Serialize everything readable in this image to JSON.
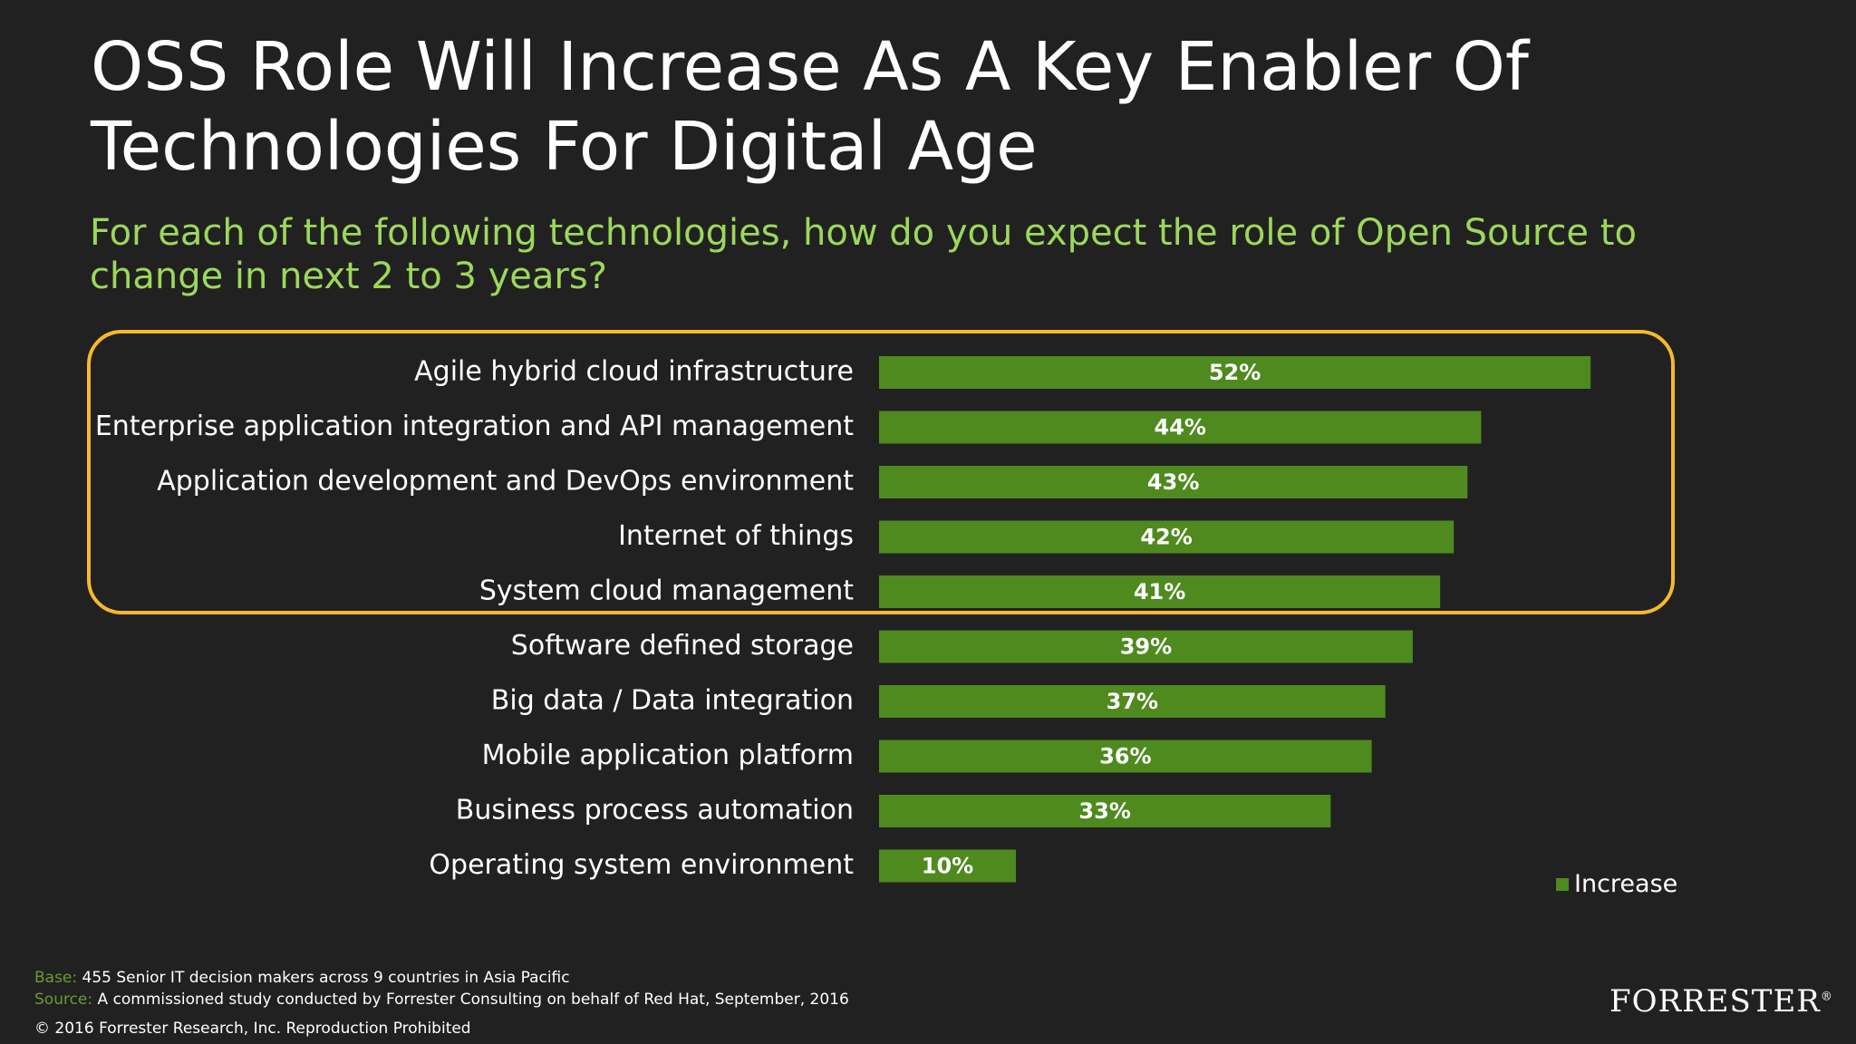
{
  "title": "OSS Role Will Increase As A Key Enabler Of Technologies For Digital Age",
  "question": "For each of the following technologies, how do you expect the role of Open Source to change in next 2 to 3 years?",
  "colors": {
    "background": "#212121",
    "bar": "#4e8a1e",
    "question": "#9cd85a",
    "highlight": "#f6b92b"
  },
  "chart_data": {
    "type": "bar",
    "orientation": "horizontal",
    "categories": [
      "Agile hybrid cloud infrastructure",
      "Enterprise application integration and API management",
      "Application development and DevOps environment",
      "Internet of things",
      "System cloud management",
      "Software defined storage",
      "Big data / Data integration",
      "Mobile application platform",
      "Business process automation",
      "Operating system environment"
    ],
    "series": [
      {
        "name": "Increase",
        "values": [
          52,
          44,
          43,
          42,
          41,
          39,
          37,
          36,
          33,
          10
        ],
        "labels": [
          "52%",
          "44%",
          "43%",
          "42%",
          "41%",
          "39%",
          "37%",
          "36%",
          "33%",
          "10%"
        ]
      }
    ],
    "value_unit": "%",
    "highlighted_categories": 5,
    "legend": "bottom-right",
    "grid": false
  },
  "footer": {
    "base_label": "Base:",
    "base_text": "455 Senior IT decision makers across 9 countries in Asia Pacific",
    "source_label": "Source:",
    "source_text": "A commissioned study conducted by Forrester Consulting on behalf of Red Hat, September, 2016",
    "copyright": "© 2016 Forrester Research, Inc. Reproduction Prohibited"
  },
  "logo": {
    "text": "FORRESTER",
    "mark": "®"
  }
}
